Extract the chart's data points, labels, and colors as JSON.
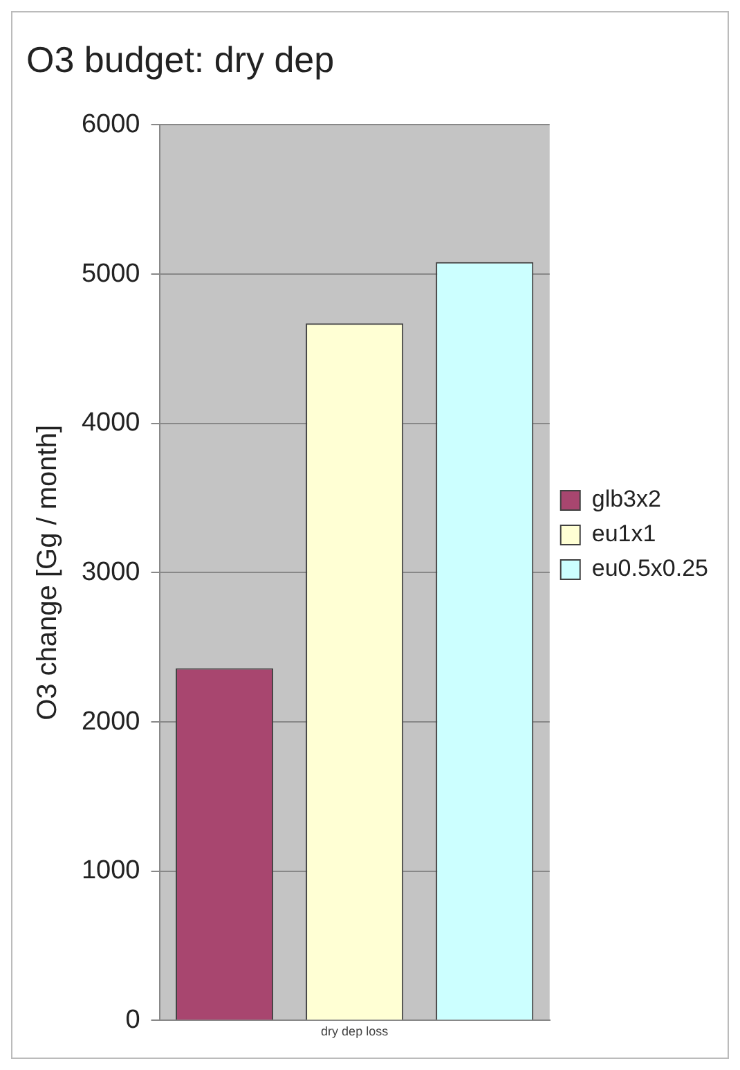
{
  "chart_data": {
    "type": "bar",
    "title": "O3 budget: dry dep",
    "ylabel": "O3 change [Gg / month]",
    "categories": [
      "dry dep loss"
    ],
    "series": [
      {
        "name": "glb3x2",
        "color": "#a8466f",
        "values": [
          2360
        ]
      },
      {
        "name": "eu1x1",
        "color": "#ffffd4",
        "values": [
          4670
        ]
      },
      {
        "name": "eu0.5x0.25",
        "color": "#ccffff",
        "values": [
          5080
        ]
      }
    ],
    "ylim": [
      0,
      6000
    ],
    "yticks": [
      0,
      1000,
      2000,
      3000,
      4000,
      5000,
      6000
    ],
    "grid": "y",
    "legend": "right"
  }
}
